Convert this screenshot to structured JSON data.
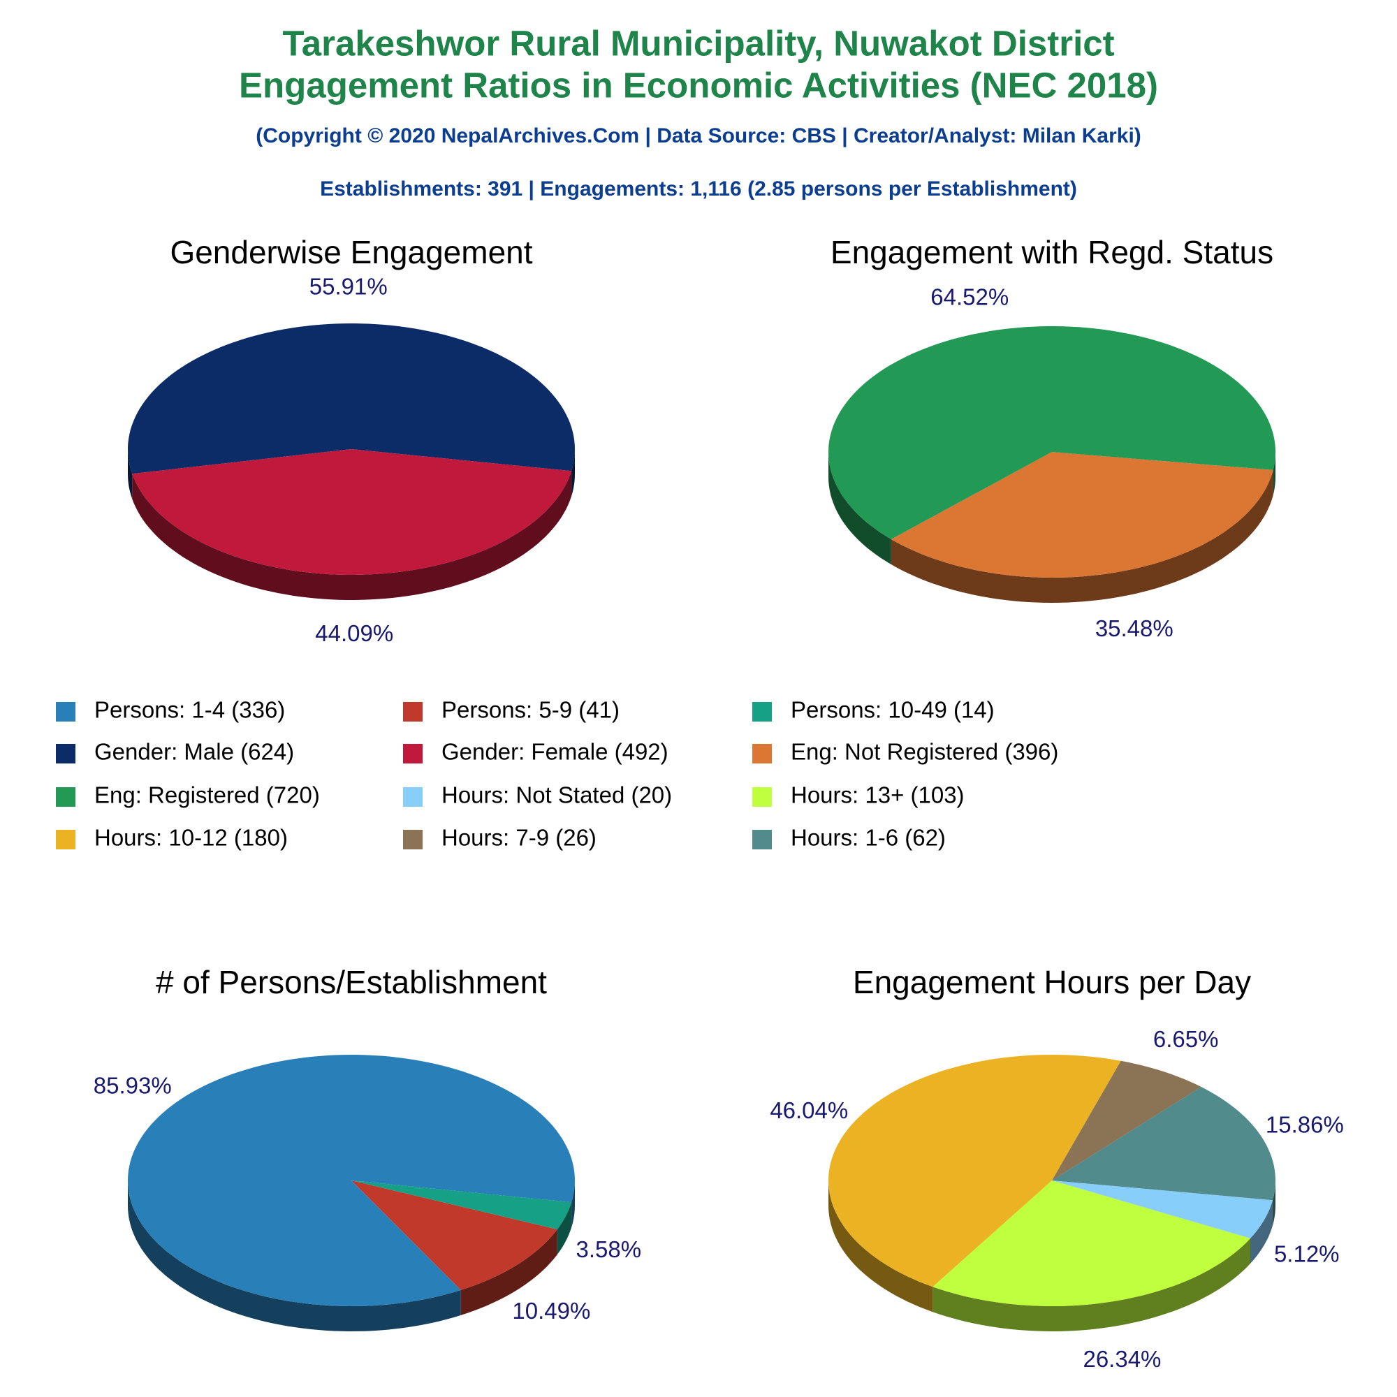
{
  "header": {
    "title_line1": "Tarakeshwor Rural Municipality, Nuwakot District",
    "title_line2": "Engagement Ratios in Economic Activities (NEC 2018)",
    "copyright": "(Copyright © 2020 NepalArchives.Com | Data Source: CBS | Creator/Analyst: Milan Karki)",
    "summary": "Establishments: 391 | Engagements: 1,116 (2.85 persons per Establishment)"
  },
  "chart_data": [
    {
      "type": "pie",
      "title": "# of Persons/Establishment",
      "categories": [
        "Persons: 1-4 (336)",
        "Persons: 5-9 (41)",
        "Persons: 10-49 (14)"
      ],
      "values": [
        85.93,
        10.49,
        3.58
      ],
      "value_labels": [
        "85.93%",
        "10.49%",
        "3.58%"
      ],
      "colors": [
        "#2980b9",
        "#c0392b",
        "#16a085"
      ]
    },
    {
      "type": "pie",
      "title": "Genderwise Engagement",
      "categories": [
        "Gender: Male (624)",
        "Gender: Female (492)"
      ],
      "values": [
        55.91,
        44.09
      ],
      "value_labels": [
        "55.91%",
        "44.09%"
      ],
      "colors": [
        "#0b2c66",
        "#c0193c"
      ]
    },
    {
      "type": "pie",
      "title": "Engagement with Regd. Status",
      "categories": [
        "Eng: Not Registered (396)",
        "Eng: Registered (720)"
      ],
      "values": [
        35.48,
        64.52
      ],
      "value_labels": [
        "35.48%",
        "64.52%"
      ],
      "colors": [
        "#dc7633",
        "#229954"
      ]
    },
    {
      "type": "pie",
      "title": "Engagement Hours per Day",
      "categories": [
        "Hours: Not Stated (20)",
        "Hours: 13+ (103)",
        "Hours: 10-12 (180)",
        "Hours: 7-9 (26)",
        "Hours: 1-6 (62)"
      ],
      "values": [
        5.12,
        26.34,
        46.04,
        6.65,
        15.86
      ],
      "value_labels": [
        "5.12%",
        "26.34%",
        "46.04%",
        "6.65%",
        "15.86%"
      ],
      "colors": [
        "#87cefa",
        "#c0ff3e",
        "#ebb323",
        "#8b7355",
        "#528b8b"
      ]
    }
  ]
}
